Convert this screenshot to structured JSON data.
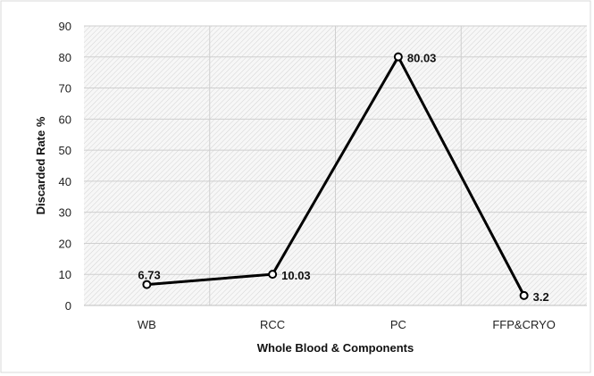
{
  "chart_data": {
    "type": "line",
    "categories": [
      "WB",
      "RCC",
      "PC",
      "FFP&CRYO"
    ],
    "series": [
      {
        "values": [
          6.73,
          10.03,
          80.03,
          3.2
        ],
        "color": "#000000"
      }
    ],
    "data_labels": [
      "6.73",
      "10.03",
      "80.03",
      "3.2"
    ],
    "xlabel": "Whole Blood & Components",
    "ylabel": "Discarded Rate %",
    "ylim": [
      0,
      90
    ],
    "yticks": [
      0,
      10,
      20,
      30,
      40,
      50,
      60,
      70,
      80,
      90
    ],
    "grid": true,
    "plot_area_pattern": "diagonal-hatch",
    "marker": "hollow-circle"
  }
}
